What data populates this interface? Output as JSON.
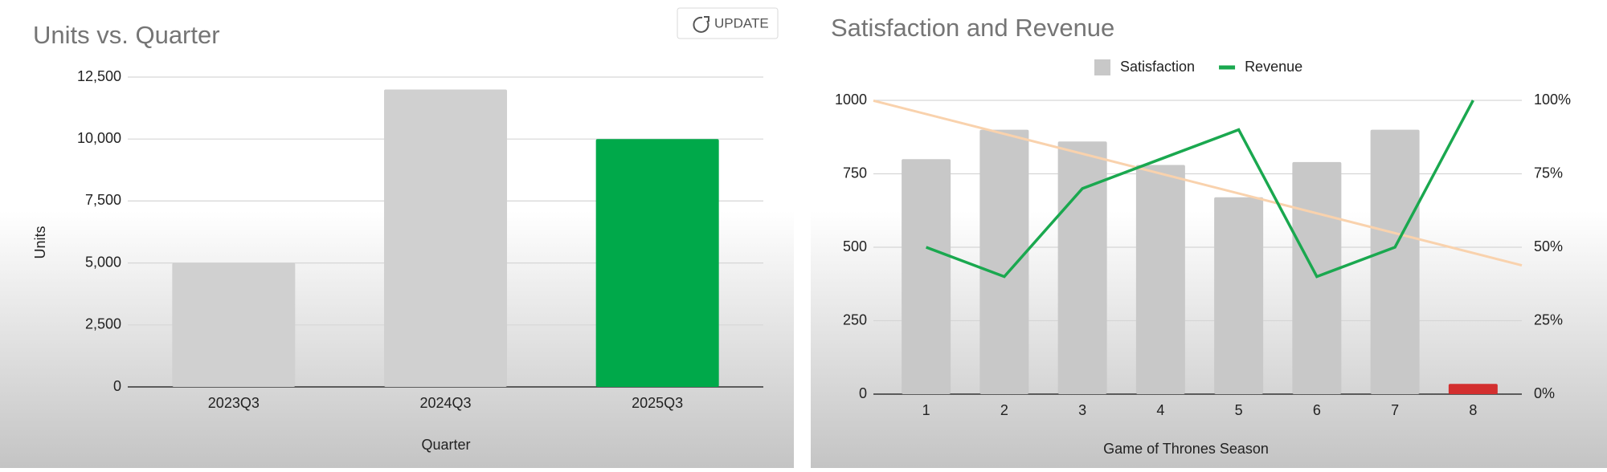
{
  "button": {
    "label": "UPDATE"
  },
  "chart_data": [
    {
      "type": "bar",
      "title": "Units vs. Quarter",
      "x_label": "Quarter",
      "y_label": "Units",
      "categories": [
        "2023Q3",
        "2024Q3",
        "2025Q3"
      ],
      "values": [
        5000,
        12000,
        10000
      ],
      "colors": [
        "#d0d0d0",
        "#d0d0d0",
        "#00a94a"
      ],
      "ylim": [
        0,
        12500
      ],
      "yticks": [
        0,
        {
          "value": 2500,
          "label": "2,500"
        },
        {
          "value": 5000,
          "label": "5,000"
        },
        {
          "value": 7500,
          "label": "7,500"
        },
        {
          "value": 10000,
          "label": "10,000"
        },
        {
          "value": 12500,
          "label": "12,500"
        }
      ],
      "grid": true
    },
    {
      "type": "combo",
      "title": "Satisfaction and Revenue",
      "x_label": "Game of Thrones Season",
      "categories": [
        "1",
        "2",
        "3",
        "4",
        "5",
        "6",
        "7",
        "8"
      ],
      "series": [
        {
          "name": "Satisfaction",
          "type": "bar",
          "color": "#c8c8c8",
          "values": [
            800,
            900,
            860,
            780,
            670,
            790,
            900,
            35
          ],
          "colors": [
            "#c8c8c8",
            "#c8c8c8",
            "#c8c8c8",
            "#c8c8c8",
            "#c8c8c8",
            "#c8c8c8",
            "#c8c8c8",
            "#d32f2f"
          ],
          "trendline": true,
          "trendline_color": "#f9d2ad"
        },
        {
          "name": "Revenue",
          "type": "line",
          "axis": "y2",
          "color": "#1aa84f",
          "values": [
            50,
            40,
            70,
            80,
            90,
            40,
            50,
            100
          ]
        }
      ],
      "ylim": [
        0,
        1000
      ],
      "yticks": [
        0,
        250,
        500,
        750,
        1000
      ],
      "y2lim": [
        0,
        100
      ],
      "y2ticks": [
        {
          "value": 0,
          "label": "0%"
        },
        {
          "value": 25,
          "label": "25%"
        },
        {
          "value": 50,
          "label": "50%"
        },
        {
          "value": 75,
          "label": "75%"
        },
        {
          "value": 100,
          "label": "100%"
        }
      ],
      "grid": true,
      "legend": "top"
    }
  ]
}
